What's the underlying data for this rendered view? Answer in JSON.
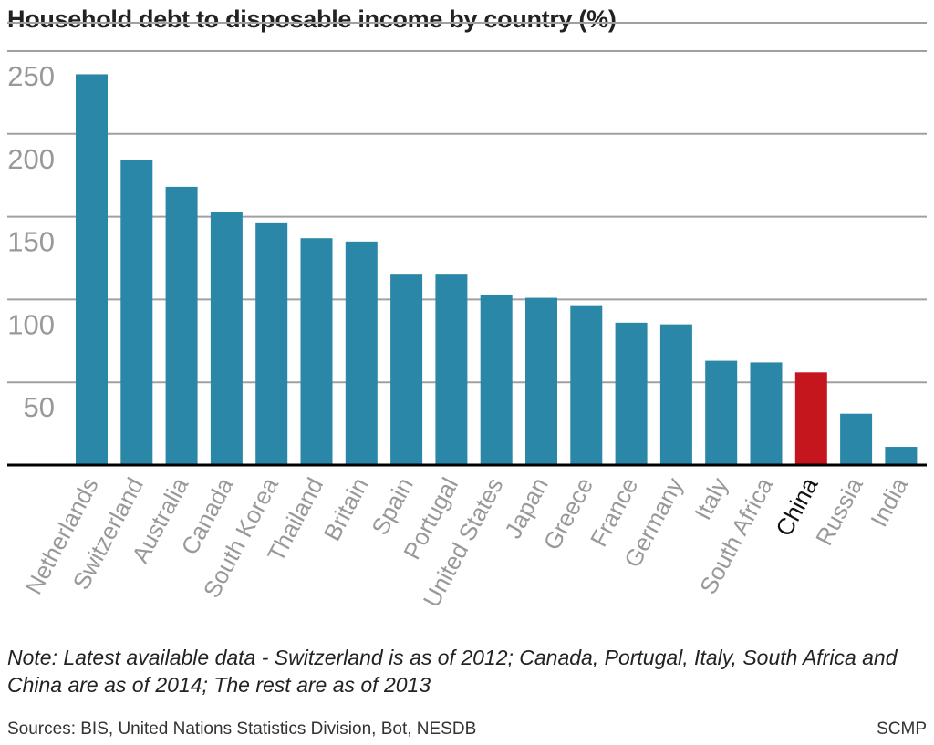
{
  "chart_data": {
    "type": "bar",
    "title": "Household debt to disposable income by country (%)",
    "categories": [
      "Netherlands",
      "Switzerland",
      "Australia",
      "Canada",
      "South Korea",
      "Thailand",
      "Britain",
      "Spain",
      "Portugal",
      "United States",
      "Japan",
      "Greece",
      "France",
      "Germany",
      "Italy",
      "South Africa",
      "China",
      "Russia",
      "India"
    ],
    "values": [
      236,
      184,
      168,
      153,
      146,
      137,
      135,
      115,
      115,
      103,
      101,
      96,
      86,
      85,
      63,
      62,
      56,
      31,
      11
    ],
    "highlight": "China",
    "ylim": [
      0,
      250
    ],
    "yticks": [
      50,
      100,
      150,
      200,
      250
    ],
    "grid": true,
    "colors": {
      "bar": "#2b87a8",
      "highlight": "#c4161c",
      "grid": "#a0a0a0",
      "axis": "#000000",
      "tick_label": "#999999",
      "highlight_label": "#111111"
    }
  },
  "note": "Note: Latest available data - Switzerland is as of 2012; Canada, Portugal, Italy, South Africa and China are as of 2014; The rest are as of 2013",
  "sources": "Sources: BIS, United Nations Statistics Division, Bot, NESDB",
  "credit": "SCMP"
}
